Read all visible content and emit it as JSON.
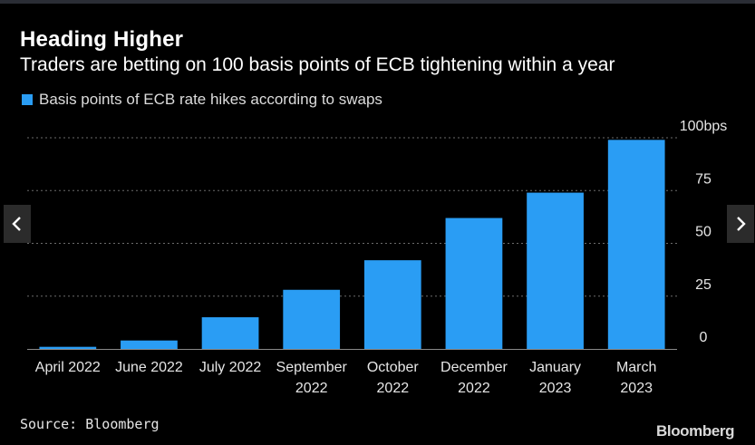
{
  "header": {
    "title": "Heading Higher",
    "subtitle": "Traders are betting on 100 basis points of ECB tightening within a year"
  },
  "legend": {
    "label": "Basis points of ECB rate hikes according to swaps",
    "color": "#2a9df4"
  },
  "chart_data": {
    "type": "bar",
    "title": "Heading Higher",
    "subtitle": "Traders are betting on 100 basis points of ECB tightening within a year",
    "categories": [
      [
        "April 2022"
      ],
      [
        "June 2022"
      ],
      [
        "July 2022"
      ],
      [
        "September",
        "2022"
      ],
      [
        "October",
        "2022"
      ],
      [
        "December",
        "2022"
      ],
      [
        "January",
        "2023"
      ],
      [
        "March",
        "2023"
      ]
    ],
    "series": [
      {
        "name": "Basis points of ECB rate hikes according to swaps",
        "values": [
          1,
          4,
          15,
          28,
          42,
          62,
          74,
          99
        ],
        "color": "#2a9df4"
      }
    ],
    "y_ticks": [
      {
        "value": 0,
        "label": "0"
      },
      {
        "value": 25,
        "label": "25"
      },
      {
        "value": 50,
        "label": "50"
      },
      {
        "value": 75,
        "label": "75"
      },
      {
        "value": 100,
        "label": "100bps"
      }
    ],
    "ylim": [
      0,
      100
    ],
    "grid": true,
    "y_axis_position": "right",
    "legend_position": "top-left"
  },
  "nav": {
    "prev_icon": "chevron-left-icon",
    "next_icon": "chevron-right-icon"
  },
  "footer": {
    "source": "Source: Bloomberg",
    "brand": "Bloomberg"
  }
}
